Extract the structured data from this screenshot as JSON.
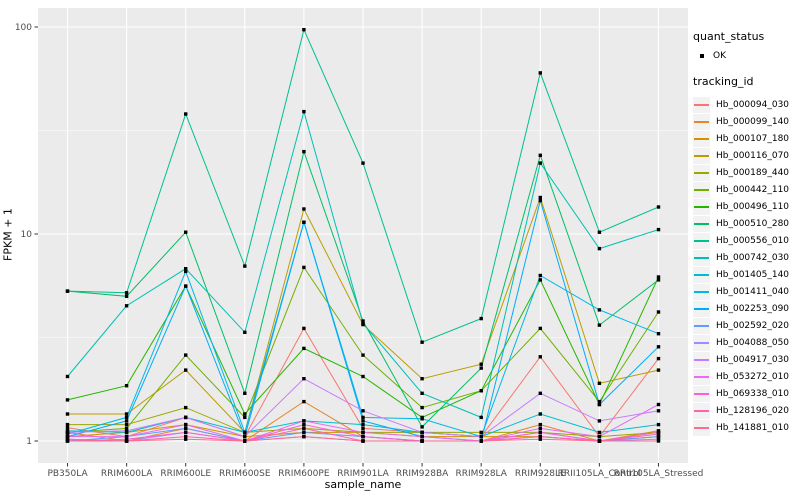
{
  "chart_data": {
    "type": "line",
    "title": "",
    "xlabel": "sample_name",
    "ylabel": "FPKM + 1",
    "y_scale": "log10",
    "y_ticks": [
      "1",
      "10",
      "100"
    ],
    "y_minor_breaks": [
      3.1623,
      31.623
    ],
    "ylim": [
      0.79,
      120
    ],
    "grid": true,
    "legend_position": "right",
    "point_shape": "small black square",
    "categories": [
      "PB350LA",
      "RRIM600LA",
      "RRIM600LE",
      "RRIM600SE",
      "RRIM600PE",
      "RRIM901LA",
      "RRIM928BA",
      "RRIM928LA",
      "RRIM928LE",
      "RRII105LA_Control",
      "RRII105LA_Stressed"
    ],
    "legend": {
      "quant_status_title": "quant_status",
      "quant_status_items": [
        {
          "label": "OK"
        }
      ],
      "tracking_id_title": "tracking_id"
    },
    "series": [
      {
        "name": "Hb_000094_030",
        "color": "#F8766D",
        "values": [
          1.16,
          1.05,
          1.3,
          1.05,
          3.5,
          1.15,
          1.1,
          1.05,
          2.55,
          1.05,
          2.5
        ]
      },
      {
        "name": "Hb_000099_140",
        "color": "#E9842C",
        "values": [
          1.1,
          1.0,
          1.15,
          1.0,
          1.55,
          1.05,
          1.0,
          1.0,
          1.2,
          1.0,
          1.12
        ]
      },
      {
        "name": "Hb_000107_180",
        "color": "#D69100",
        "values": [
          1.05,
          1.1,
          1.2,
          1.05,
          1.1,
          1.1,
          1.05,
          1.05,
          1.05,
          1.0,
          1.05
        ]
      },
      {
        "name": "Hb_000116_070",
        "color": "#BC9D00",
        "values": [
          1.35,
          1.35,
          2.2,
          1.1,
          13.2,
          3.65,
          2.0,
          2.35,
          15.0,
          1.9,
          2.2
        ]
      },
      {
        "name": "Hb_000189_440",
        "color": "#9CA700",
        "values": [
          1.2,
          1.2,
          1.45,
          1.1,
          1.15,
          1.1,
          1.1,
          1.1,
          1.1,
          1.05,
          1.1
        ]
      },
      {
        "name": "Hb_000442_110",
        "color": "#6FB000",
        "values": [
          1.1,
          1.15,
          2.6,
          1.3,
          6.9,
          2.6,
          1.45,
          1.75,
          3.5,
          1.55,
          4.2
        ]
      },
      {
        "name": "Hb_000496_110",
        "color": "#24B700",
        "values": [
          1.58,
          1.85,
          5.6,
          1.35,
          2.8,
          2.05,
          1.3,
          1.75,
          6.0,
          1.5,
          6.2
        ]
      },
      {
        "name": "Hb_000510_280",
        "color": "#00BE67",
        "values": [
          5.3,
          5.0,
          10.2,
          1.7,
          25.0,
          3.8,
          1.17,
          2.25,
          24.0,
          3.63,
          6.0
        ]
      },
      {
        "name": "Hb_000556_010",
        "color": "#00C08E",
        "values": [
          5.3,
          5.2,
          38.0,
          7.0,
          97.0,
          22.0,
          3.0,
          3.9,
          60.0,
          10.2,
          13.5
        ]
      },
      {
        "name": "Hb_000742_030",
        "color": "#00C0B2",
        "values": [
          2.05,
          4.5,
          6.8,
          3.35,
          39.0,
          3.7,
          1.7,
          1.3,
          22.0,
          8.5,
          10.5
        ]
      },
      {
        "name": "Hb_001405_140",
        "color": "#00BDD1",
        "values": [
          1.12,
          1.1,
          1.3,
          1.1,
          1.25,
          1.2,
          1.1,
          1.05,
          1.35,
          1.1,
          1.2
        ]
      },
      {
        "name": "Hb_001411_040",
        "color": "#00B8E5",
        "values": [
          1.08,
          1.3,
          6.6,
          1.1,
          11.4,
          1.3,
          1.28,
          1.05,
          6.3,
          4.3,
          3.3
        ]
      },
      {
        "name": "Hb_002253_090",
        "color": "#00ACFC",
        "values": [
          1.05,
          1.25,
          5.6,
          1.05,
          11.4,
          1.25,
          1.05,
          1.0,
          14.5,
          1.5,
          2.85
        ]
      },
      {
        "name": "Hb_002592_020",
        "color": "#619CFF",
        "values": [
          1.0,
          1.05,
          1.15,
          1.0,
          1.1,
          1.05,
          1.0,
          1.0,
          1.1,
          1.0,
          1.05
        ]
      },
      {
        "name": "Hb_004088_050",
        "color": "#A58AFF",
        "values": [
          1.02,
          1.0,
          1.1,
          1.0,
          1.05,
          1.0,
          1.0,
          1.0,
          1.05,
          1.0,
          1.02
        ]
      },
      {
        "name": "Hb_004917_030",
        "color": "#C77CFF",
        "values": [
          1.1,
          1.12,
          1.3,
          1.05,
          2.0,
          1.4,
          1.1,
          1.05,
          1.7,
          1.25,
          1.4
        ]
      },
      {
        "name": "Hb_053272_010",
        "color": "#E76BF3",
        "values": [
          1.05,
          1.05,
          1.2,
          1.0,
          1.25,
          1.1,
          1.05,
          1.0,
          1.15,
          1.05,
          1.5
        ]
      },
      {
        "name": "Hb_069338_010",
        "color": "#FB61D7",
        "values": [
          1.0,
          1.02,
          1.1,
          1.0,
          1.2,
          1.05,
          1.0,
          1.0,
          1.1,
          1.0,
          1.1
        ]
      },
      {
        "name": "Hb_128196_020",
        "color": "#FF65AC",
        "values": [
          1.02,
          1.0,
          1.05,
          1.0,
          1.15,
          1.0,
          1.0,
          1.0,
          1.05,
          1.0,
          1.08
        ]
      },
      {
        "name": "Hb_141881_010",
        "color": "#FF6C90",
        "values": [
          1.0,
          1.0,
          1.02,
          1.0,
          1.05,
          1.0,
          1.0,
          1.0,
          1.02,
          1.0,
          1.0
        ]
      }
    ],
    "colors": {
      "panel_background": "#EBEBEB",
      "gridline": "#FFFFFF",
      "tick_label": "#4D4D4D",
      "tick_mark": "#333333",
      "point": "#000000",
      "legend_key_background": "#F2F2F2"
    }
  }
}
